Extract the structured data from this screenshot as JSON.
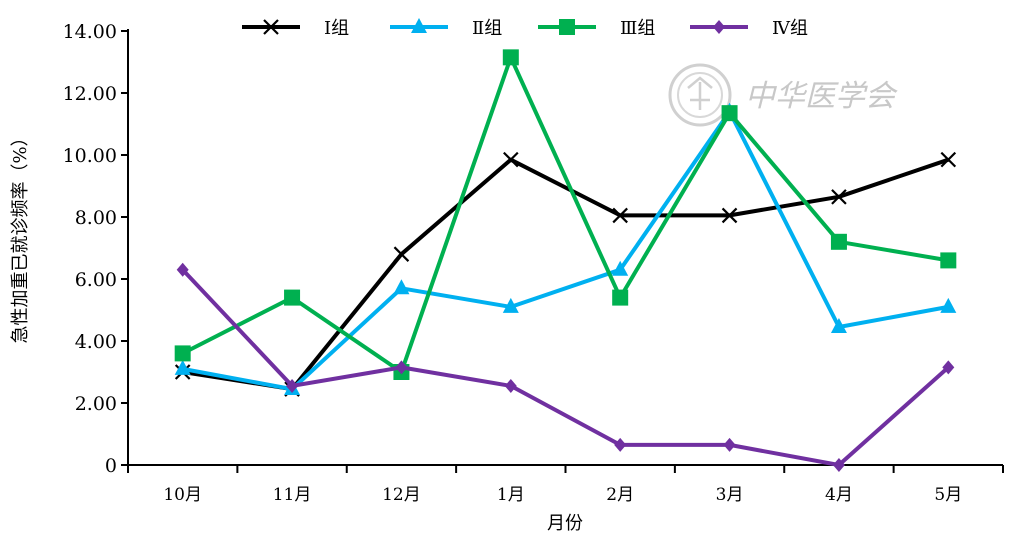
{
  "chart_data": {
    "type": "line",
    "categories": [
      "10月",
      "11月",
      "12月",
      "1月",
      "2月",
      "3月",
      "4月",
      "5月"
    ],
    "ylabel": "急性加重已就诊频率（%）",
    "xlabel": "月份",
    "ylim": [
      0,
      14
    ],
    "yticks": [
      "0",
      "2.00",
      "4.00",
      "6.00",
      "8.00",
      "10.00",
      "12.00",
      "14.00"
    ],
    "legend_position": "top",
    "grid": false,
    "series": [
      {
        "name": "Ⅰ组",
        "marker": "x",
        "color": "#000000",
        "values": [
          3.0,
          2.45,
          6.8,
          9.85,
          8.05,
          8.05,
          8.65,
          9.85
        ]
      },
      {
        "name": "Ⅱ组",
        "marker": "triangle",
        "color": "#00b0f0",
        "values": [
          3.1,
          2.45,
          5.7,
          5.1,
          6.3,
          11.4,
          4.45,
          5.1
        ]
      },
      {
        "name": "Ⅲ组",
        "marker": "square",
        "color": "#00b050",
        "values": [
          3.6,
          5.4,
          3.0,
          13.15,
          5.4,
          11.35,
          7.2,
          6.6
        ]
      },
      {
        "name": "Ⅳ组",
        "marker": "diamond",
        "color": "#7030a0",
        "values": [
          6.3,
          2.55,
          3.15,
          2.55,
          0.65,
          0.65,
          0.0,
          3.15
        ]
      }
    ]
  },
  "watermark": {
    "text": "中华医学会"
  }
}
